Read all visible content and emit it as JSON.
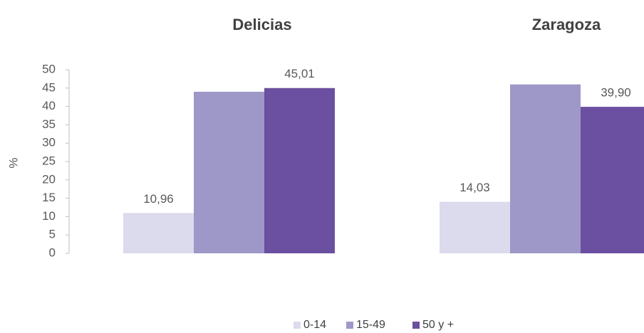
{
  "chart_data": {
    "type": "bar",
    "title": "",
    "xlabel": "",
    "ylabel": "%",
    "ylim": [
      0,
      50
    ],
    "yticks": [
      0,
      5,
      10,
      15,
      20,
      25,
      30,
      35,
      40,
      45,
      50
    ],
    "grid": false,
    "legend_position": "bottom",
    "categories": [
      "Delicias",
      "Zaragoza"
    ],
    "series": [
      {
        "name": "0-14",
        "color": "#DCDAED",
        "values": [
          10.96,
          14.03
        ],
        "labels": [
          "10,96",
          "14,03"
        ]
      },
      {
        "name": "15-49",
        "color": "#9D98C8",
        "values": [
          44.0,
          46.0
        ],
        "labels": [
          "",
          ""
        ]
      },
      {
        "name": "50 y +",
        "color": "#6B4FA1",
        "values": [
          45.01,
          39.9
        ],
        "labels": [
          "45,01",
          "39,90"
        ]
      }
    ]
  }
}
